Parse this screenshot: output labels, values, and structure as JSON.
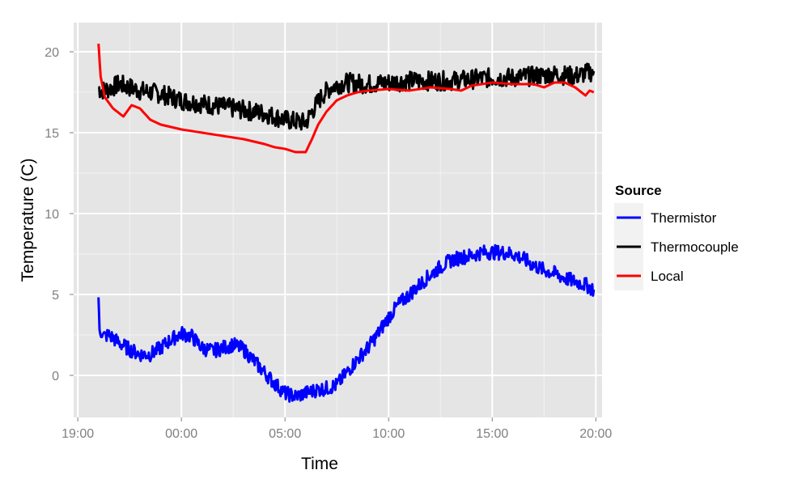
{
  "chart_data": {
    "type": "line",
    "title": "",
    "xlabel": "Time",
    "ylabel": "Temperature (C)",
    "x_ticks": [
      "19:00",
      "00:00",
      "05:00",
      "10:00",
      "15:00",
      "20:00"
    ],
    "x_tick_hours": [
      19,
      24,
      29,
      34,
      39,
      44
    ],
    "xlim_hours": [
      18.8,
      44.3
    ],
    "y_ticks": [
      "0",
      "5",
      "10",
      "15",
      "20"
    ],
    "y_tick_values": [
      0,
      5,
      10,
      15,
      20
    ],
    "ylim": [
      -2.6,
      21.8
    ],
    "grid": true,
    "legend": {
      "title": "Source",
      "position": "right",
      "entries": [
        {
          "name": "Thermistor",
          "color": "#0000ff"
        },
        {
          "name": "Thermocouple",
          "color": "#000000"
        },
        {
          "name": "Local",
          "color": "#ff0000"
        }
      ]
    },
    "series": [
      {
        "name": "Thermocouple",
        "color": "#000000",
        "noise": 0.6,
        "x_hours": [
          20.0,
          20.1,
          20.5,
          21.0,
          22.0,
          23.0,
          24.0,
          25.0,
          26.0,
          27.0,
          28.0,
          28.5,
          29.0,
          29.5,
          30.0,
          30.3,
          30.8,
          31.2,
          31.6,
          32.0,
          33.0,
          34.0,
          35.0,
          36.0,
          37.0,
          38.0,
          39.0,
          40.0,
          41.0,
          42.0,
          43.0,
          43.9
        ],
        "values": [
          17.8,
          17.6,
          17.7,
          18.0,
          17.6,
          17.4,
          17.0,
          16.8,
          16.6,
          16.4,
          16.2,
          16.0,
          15.8,
          15.7,
          15.6,
          16.3,
          17.3,
          17.8,
          18.0,
          18.1,
          18.0,
          18.1,
          18.2,
          18.2,
          18.2,
          18.3,
          18.4,
          18.4,
          18.5,
          18.6,
          18.5,
          18.8
        ]
      },
      {
        "name": "Local",
        "color": "#ff0000",
        "noise": 0,
        "x_hours": [
          20.0,
          20.1,
          20.3,
          20.7,
          21.2,
          21.6,
          22.0,
          22.5,
          23.0,
          24.0,
          25.0,
          26.0,
          27.0,
          28.0,
          28.5,
          29.0,
          29.5,
          30.0,
          30.3,
          30.6,
          31.0,
          31.5,
          32.0,
          32.5,
          33.0,
          34.0,
          35.0,
          36.0,
          37.0,
          37.5,
          38.0,
          39.0,
          40.0,
          41.0,
          41.5,
          42.0,
          42.5,
          43.0,
          43.3,
          43.5,
          43.7,
          43.9
        ],
        "values": [
          20.5,
          18.5,
          17.2,
          16.5,
          16.0,
          16.7,
          16.5,
          15.8,
          15.5,
          15.2,
          15.0,
          14.8,
          14.6,
          14.3,
          14.1,
          14.0,
          13.8,
          13.8,
          14.6,
          15.5,
          16.3,
          17.0,
          17.3,
          17.5,
          17.6,
          17.7,
          17.6,
          17.8,
          17.7,
          17.6,
          17.9,
          18.1,
          18.0,
          18.0,
          17.8,
          18.1,
          18.1,
          17.8,
          17.5,
          17.3,
          17.6,
          17.5
        ]
      },
      {
        "name": "Thermistor",
        "color": "#0000ff",
        "noise": 0.45,
        "x_hours": [
          20.0,
          20.05,
          20.2,
          20.5,
          21.0,
          21.5,
          22.0,
          22.5,
          23.0,
          23.5,
          24.0,
          24.5,
          25.0,
          25.5,
          26.0,
          26.5,
          27.0,
          27.5,
          28.0,
          28.5,
          29.0,
          29.5,
          30.0,
          30.5,
          31.0,
          31.5,
          32.0,
          32.5,
          33.0,
          33.5,
          34.0,
          34.5,
          35.0,
          35.5,
          36.0,
          36.5,
          37.0,
          37.5,
          38.0,
          38.5,
          39.0,
          39.5,
          40.0,
          40.5,
          41.0,
          41.5,
          42.0,
          42.5,
          43.0,
          43.5,
          43.9
        ],
        "values": [
          4.5,
          3.0,
          2.4,
          2.5,
          2.0,
          1.6,
          1.3,
          1.3,
          1.7,
          2.2,
          2.6,
          2.4,
          1.7,
          1.5,
          1.7,
          1.9,
          1.6,
          0.9,
          0.2,
          -0.5,
          -1.1,
          -1.3,
          -1.1,
          -0.9,
          -0.8,
          -0.6,
          0.2,
          1.0,
          1.7,
          2.6,
          3.6,
          4.4,
          5.0,
          5.6,
          6.2,
          6.7,
          7.1,
          7.3,
          7.4,
          7.6,
          7.6,
          7.6,
          7.5,
          7.2,
          6.8,
          6.5,
          6.3,
          6.0,
          5.8,
          5.6,
          5.3
        ]
      }
    ]
  }
}
